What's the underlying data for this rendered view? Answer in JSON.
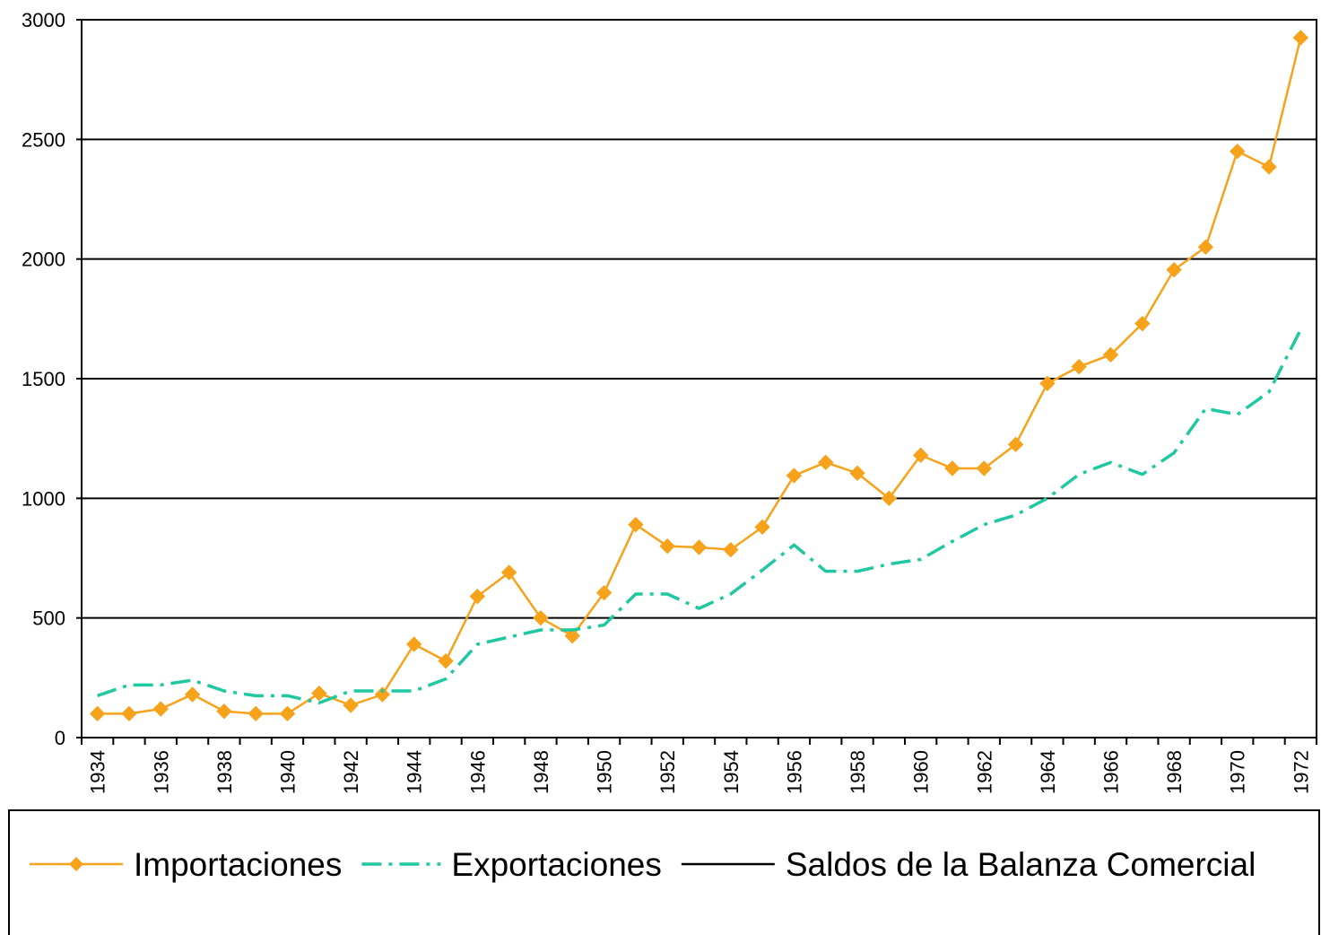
{
  "chart_data": {
    "type": "line",
    "categories": [
      "1934",
      null,
      "1936",
      null,
      "1938",
      null,
      "1940",
      null,
      "1942",
      null,
      "1944",
      null,
      "1946",
      null,
      "1948",
      null,
      "1950",
      null,
      "1952",
      null,
      "1954",
      null,
      "1956",
      null,
      "1958",
      null,
      "1960",
      null,
      "1962",
      null,
      "1964",
      null,
      "1966",
      null,
      "1968",
      null,
      "1970",
      null,
      "1972"
    ],
    "series": [
      {
        "name": "Importaciones",
        "color": "#f7a21b",
        "dash": "solid",
        "marker": "diamond",
        "values": [
          100,
          100,
          120,
          180,
          110,
          100,
          100,
          185,
          135,
          180,
          390,
          320,
          590,
          690,
          500,
          425,
          605,
          890,
          800,
          795,
          785,
          880,
          1095,
          1150,
          1105,
          1000,
          1180,
          1125,
          1125,
          1225,
          1480,
          1550,
          1600,
          1730,
          1955,
          2050,
          2450,
          2385,
          2925
        ]
      },
      {
        "name": "Exportaciones",
        "color": "#1fc8a0",
        "dash": "dash-dot",
        "marker": "none",
        "values": [
          175,
          220,
          220,
          240,
          195,
          175,
          175,
          145,
          195,
          195,
          195,
          245,
          390,
          420,
          450,
          450,
          470,
          600,
          600,
          540,
          600,
          700,
          805,
          695,
          695,
          725,
          745,
          820,
          890,
          930,
          1000,
          1100,
          1150,
          1100,
          1190,
          1375,
          1350,
          1445,
          1705
        ]
      },
      {
        "name": "Saldos de la Balanza Comercial",
        "color": "#000000",
        "dash": "solid",
        "marker": "none",
        "values": [
          null,
          null,
          null,
          null,
          null,
          null,
          null,
          null,
          null,
          null,
          null,
          null,
          null,
          null,
          null,
          null,
          null,
          null,
          null,
          null,
          null,
          null,
          null,
          null,
          null,
          null,
          null,
          null,
          null,
          null,
          null,
          null,
          null,
          null,
          null,
          null,
          null,
          null,
          null
        ]
      }
    ],
    "ylim": [
      0,
      3000
    ],
    "yticks": [
      0,
      500,
      1000,
      1500,
      2000,
      2500,
      3000
    ],
    "grid": true,
    "legend": "bottom"
  }
}
